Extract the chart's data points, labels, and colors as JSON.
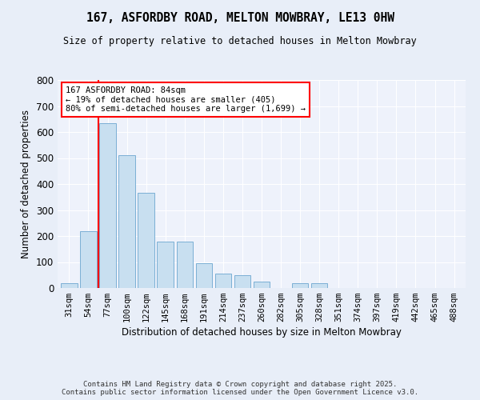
{
  "title1": "167, ASFORDBY ROAD, MELTON MOWBRAY, LE13 0HW",
  "title2": "Size of property relative to detached houses in Melton Mowbray",
  "xlabel": "Distribution of detached houses by size in Melton Mowbray",
  "ylabel": "Number of detached properties",
  "bin_labels": [
    "31sqm",
    "54sqm",
    "77sqm",
    "100sqm",
    "122sqm",
    "145sqm",
    "168sqm",
    "191sqm",
    "214sqm",
    "237sqm",
    "260sqm",
    "282sqm",
    "305sqm",
    "328sqm",
    "351sqm",
    "374sqm",
    "397sqm",
    "419sqm",
    "442sqm",
    "465sqm",
    "488sqm"
  ],
  "bar_values": [
    20,
    220,
    635,
    510,
    365,
    180,
    180,
    95,
    55,
    50,
    25,
    0,
    20,
    20,
    0,
    0,
    0,
    0,
    0,
    0,
    0
  ],
  "bar_color": "#c8dff0",
  "bar_edge_color": "#7bafd4",
  "vline_x": 1.5,
  "vline_color": "red",
  "annotation_text": "167 ASFORDBY ROAD: 84sqm\n← 19% of detached houses are smaller (405)\n80% of semi-detached houses are larger (1,699) →",
  "ylim": [
    0,
    800
  ],
  "yticks": [
    0,
    100,
    200,
    300,
    400,
    500,
    600,
    700,
    800
  ],
  "footer": "Contains HM Land Registry data © Crown copyright and database right 2025.\nContains public sector information licensed under the Open Government Licence v3.0.",
  "bg_color": "#e8eef8",
  "plot_bg_color": "#eef2fb"
}
